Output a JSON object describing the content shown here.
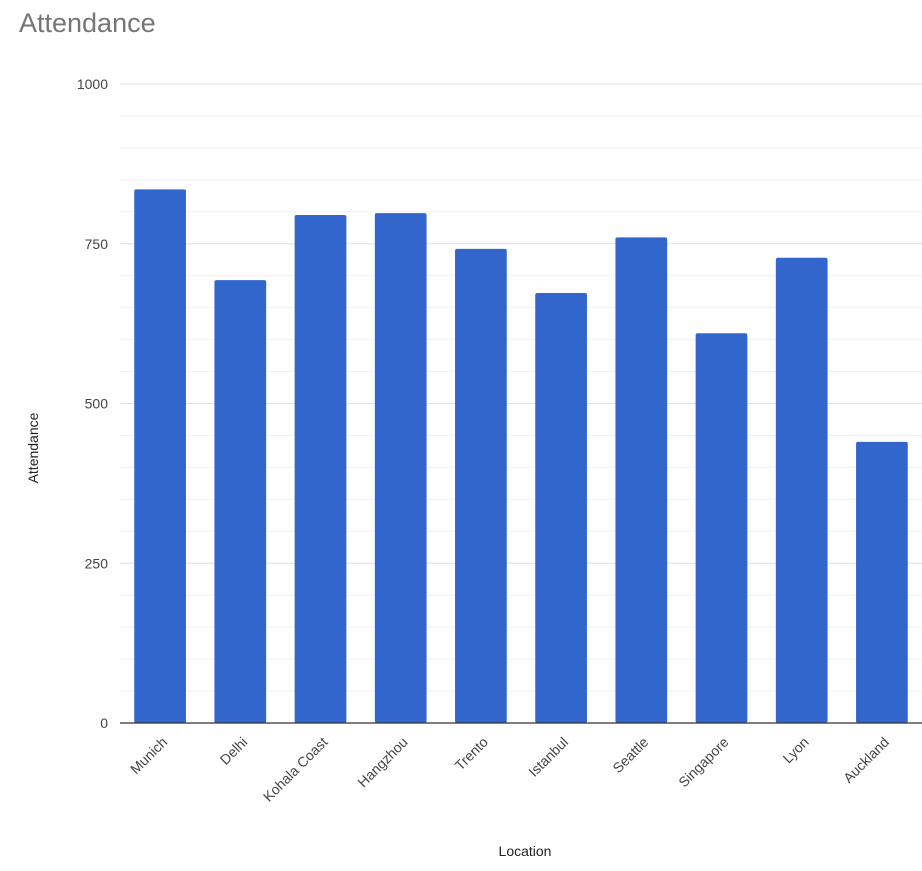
{
  "chart_data": {
    "type": "bar",
    "title": "Attendance",
    "xlabel": "Location",
    "ylabel": "Attendance",
    "categories": [
      "Munich",
      "Delhi",
      "Kohala Coast",
      "Hangzhou",
      "Trento",
      "Istanbul",
      "Seattle",
      "Singapore",
      "Lyon",
      "Auckland"
    ],
    "values": [
      835,
      693,
      795,
      798,
      742,
      673,
      760,
      610,
      728,
      440
    ],
    "ylim": [
      0,
      1000
    ],
    "yticks": [
      0,
      250,
      500,
      750,
      1000
    ],
    "grid": true,
    "legend": "none",
    "bar_color": "#3366cc",
    "gridline_color": "#e0e0e0",
    "minor_gridline_color": "#f1f1f1"
  }
}
